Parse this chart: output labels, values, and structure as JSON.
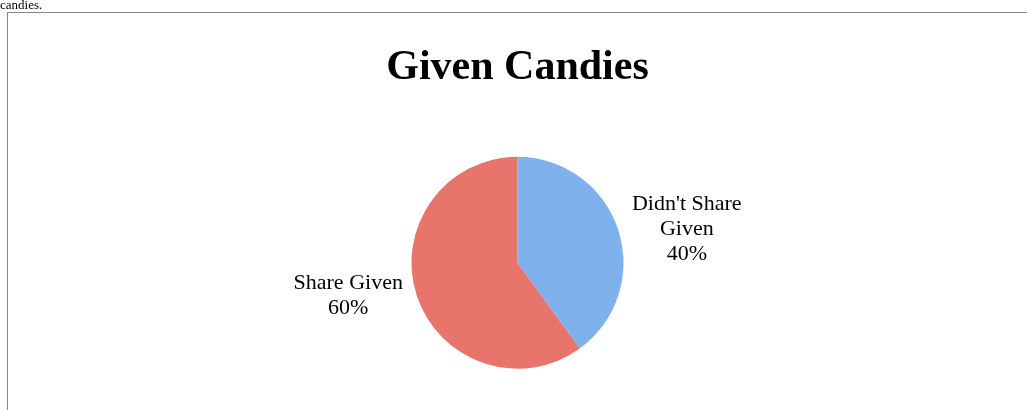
{
  "chart_data": {
    "type": "pie",
    "title": "Given Candies",
    "categories": [
      "Didn't Share Given",
      "Share Given"
    ],
    "values": [
      40,
      60
    ],
    "colors": [
      "#7fb2ec",
      "#e8756c"
    ],
    "value_labels": [
      "40%",
      "60%"
    ],
    "legend": false,
    "annotations": [
      "candies."
    ]
  }
}
